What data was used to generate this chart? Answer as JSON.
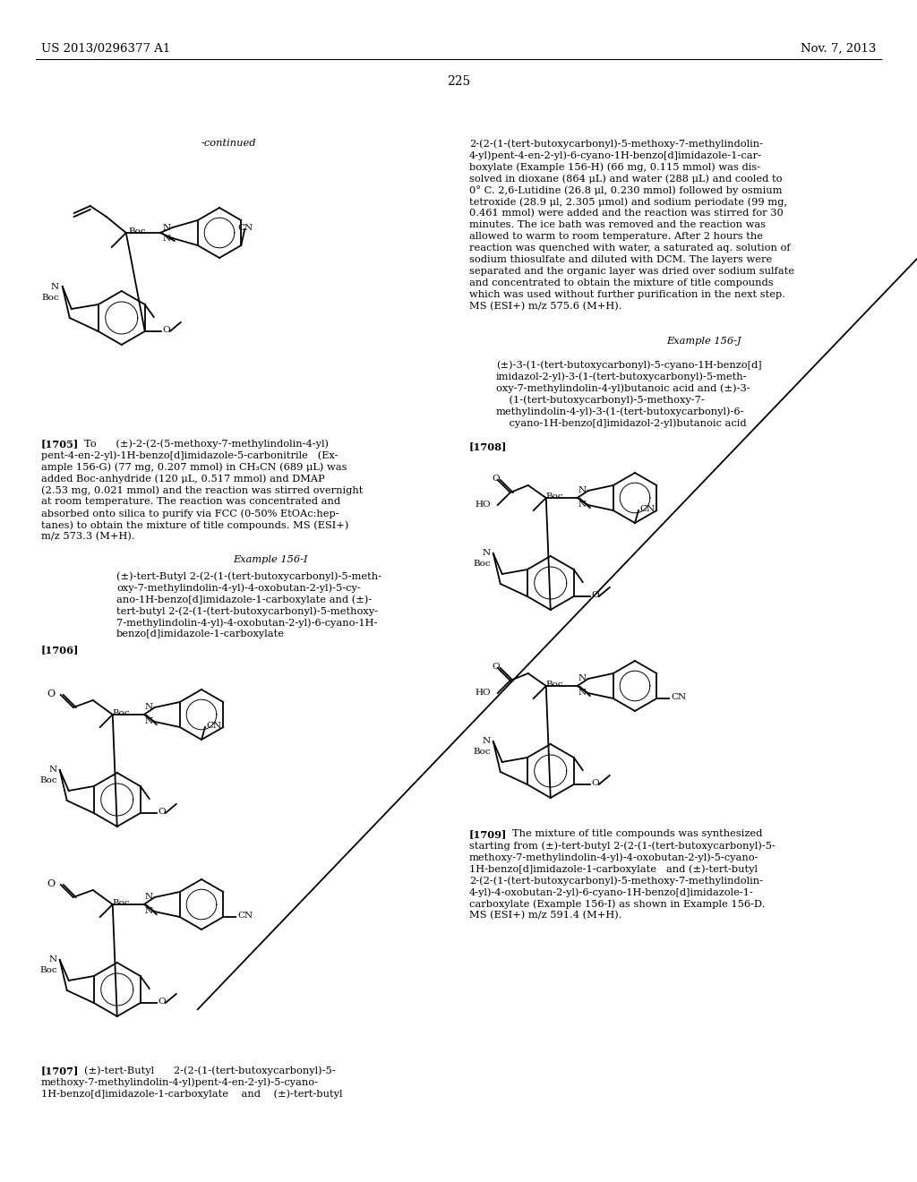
{
  "page_header_left": "US 2013/0296377 A1",
  "page_header_right": "Nov. 7, 2013",
  "page_number": "225",
  "background_color": "#ffffff",
  "text_color": "#000000",
  "font_size_header": 9.5,
  "font_size_body": 8.2,
  "font_size_body_sm": 7.5,
  "font_size_page_num": 10,
  "continued_label": "-continued",
  "section_1705_label": "[1705]",
  "section_1705_text": "To      (±)-2-(2-(5-methoxy-7-methylindolin-4-yl)pent-4-en-2-yl)-1H-benzo[d]imidazole-5-carbonitrile   (Ex-ample 156-G) (77 mg, 0.207 mmol) in CH₃CN (689 μL) was added Boc-anhydride (120 μL, 0.517 mmol) and DMAP (2.53 mg, 0.021 mmol) and the reaction was stirred overnight at room temperature. The reaction was concentrated and absorbed onto silica to purify via FCC (0-50% EtOAc:hep-tanes) to obtain the mixture of title compounds. MS (ESI+) m/z 573.3 (M+H).",
  "right_col_top_text_line1": "2-(2-(1-(tert-butoxycarbonyl)-5-methoxy-7-methylindolin-",
  "right_col_top_text_line2": "4-yl)pent-4-en-2-yl)-6-cyano-1H-benzo[d]imidazole-1-car-",
  "right_col_top_text_line3": "boxylate (Example 156-H) (66 mg, 0.115 mmol) was dis-",
  "right_col_top_text_line4": "solved in dioxane (864 μL) and water (288 μL) and cooled to",
  "right_col_top_text_line5": "0° C. 2,6-Lutidine (26.8 μl, 0.230 mmol) followed by osmium",
  "right_col_top_text_line6": "tetroxide (28.9 μl, 2.305 μmol) and sodium periodate (99 mg,",
  "right_col_top_text_line7": "0.461 mmol) were added and the reaction was stirred for 30",
  "right_col_top_text_line8": "minutes. The ice bath was removed and the reaction was",
  "right_col_top_text_line9": "allowed to warm to room temperature. After 2 hours the",
  "right_col_top_text_line10": "reaction was quenched with water, a saturated aq. solution of",
  "right_col_top_text_line11": "sodium thiosulfate and diluted with DCM. The layers were",
  "right_col_top_text_line12": "separated and the organic layer was dried over sodium sulfate",
  "right_col_top_text_line13": "and concentrated to obtain the mixture of title compounds",
  "right_col_top_text_line14": "which was used without further purification in the next step.",
  "right_col_top_text_line15": "MS (ESI+) m/z 575.6 (M+H).",
  "example_156I_header": "Example 156-I",
  "section_1706_label": "[1706]",
  "example_156I_title_line1": "(±)-tert-Butyl 2-(2-(1-(tert-butoxycarbonyl)-5-meth-",
  "example_156I_title_line2": "oxy-7-methylindolin-4-yl)-4-oxobutan-2-yl)-5-cy-",
  "example_156I_title_line3": "ano-1H-benzo[d]imidazole-1-carboxylate and (±)-",
  "example_156I_title_line4": "tert-butyl 2-(2-(1-(tert-butoxycarbonyl)-5-methoxy-",
  "example_156I_title_line5": "7-methylindolin-4-yl)-4-oxobutan-2-yl)-6-cyano-1H-",
  "example_156I_title_line6": "benzo[d]imidazole-1-carboxylate",
  "section_1707_label": "[1707]",
  "section_1707_text_line1": "(±)-tert-Butyl    2-(2-(1-(tert-butoxycarbonyl)-5-",
  "section_1707_text_line2": "methoxy-7-methylindolin-4-yl)pent-4-en-2-yl)-5-cyano-",
  "section_1707_text_line3": "1H-benzo[d]imidazole-1-carboxylate    and    (±)-tert-butyl",
  "section_1708_label": "[1708]",
  "example_156J_header": "Example 156-J",
  "example_156J_title_line1": "(±)-3-(1-(tert-butoxycarbonyl)-5-cyano-1H-benzo[d]",
  "example_156J_title_line2": "imidazol-2-yl)-3-(1-(tert-butoxycarbonyl)-5-meth-",
  "example_156J_title_line3": "oxy-7-methylindolin-4-yl)butanoic acid and (±)-3-",
  "example_156J_title_line4": "    (1-(tert-butoxycarbonyl)-5-methoxy-7-",
  "example_156J_title_line5": "methylindolin-4-yl)-3-(1-(tert-butoxycarbonyl)-6-",
  "example_156J_title_line6": "    cyano-1H-benzo[d]imidazol-2-yl)butanoic acid",
  "section_1709_label": "[1709]",
  "section_1709_text_line1": "The mixture of title compounds was synthesized",
  "section_1709_text_line2": "starting from (±)-tert-butyl 2-(2-(1-(tert-butoxycarbonyl)-5-",
  "section_1709_text_line3": "methoxy-7-methylindolin-4-yl)-4-oxobutan-2-yl)-5-cyano-",
  "section_1709_text_line4": "1H-benzo[d]imidazole-1-carboxylate   and (±)-tert-butyl",
  "section_1709_text_line5": "2-(2-(1-(tert-butoxycarbonyl)-5-methoxy-7-methylindolin-",
  "section_1709_text_line6": "4-yl)-4-oxobutan-2-yl)-6-cyano-1H-benzo[d]imidazole-1-",
  "section_1709_text_line7": "carboxylate (Example 156-I) as shown in Example 156-D.",
  "section_1709_text_line8": "MS (ESI+) m/z 591.4 (M+H)."
}
